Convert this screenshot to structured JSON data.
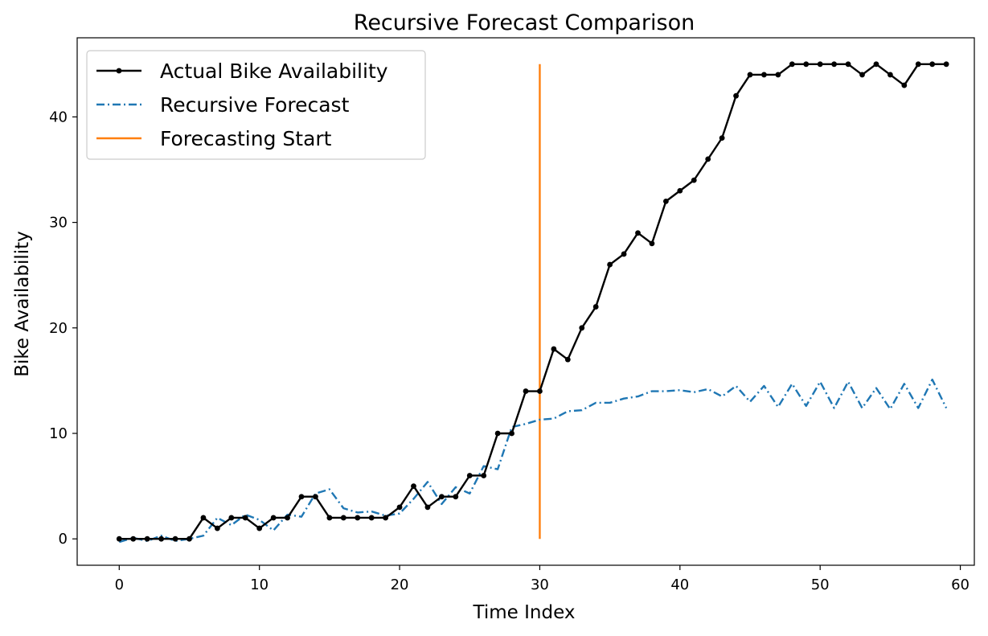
{
  "chart_data": {
    "type": "line",
    "title": "Recursive Forecast Comparison",
    "xlabel": "Time Index",
    "ylabel": "Bike Availability",
    "xlim": [
      -3,
      61
    ],
    "ylim": [
      -2.5,
      47.5
    ],
    "xticks": [
      0,
      10,
      20,
      30,
      40,
      50,
      60
    ],
    "yticks": [
      0,
      10,
      20,
      30,
      40
    ],
    "grid": false,
    "legend_position": "top-left",
    "series": [
      {
        "name": "Actual Bike Availability",
        "color": "#000000",
        "style": "solid-with-markers",
        "x": [
          0,
          1,
          2,
          3,
          4,
          5,
          6,
          7,
          8,
          9,
          10,
          11,
          12,
          13,
          14,
          15,
          16,
          17,
          18,
          19,
          20,
          21,
          22,
          23,
          24,
          25,
          26,
          27,
          28,
          29,
          30,
          31,
          32,
          33,
          34,
          35,
          36,
          37,
          38,
          39,
          40,
          41,
          42,
          43,
          44,
          45,
          46,
          47,
          48,
          49,
          50,
          51,
          52,
          53,
          54,
          55,
          56,
          57,
          58,
          59
        ],
        "values": [
          0,
          0,
          0,
          0,
          0,
          0,
          2,
          1,
          2,
          2,
          1,
          2,
          2,
          4,
          4,
          2,
          2,
          2,
          2,
          2,
          3,
          5,
          3,
          4,
          4,
          6,
          6,
          10,
          10,
          14,
          14,
          18,
          17,
          20,
          22,
          26,
          27,
          29,
          28,
          32,
          33,
          34,
          36,
          38,
          42,
          44,
          44,
          44,
          45,
          45,
          45,
          45,
          45,
          44,
          45,
          44,
          43,
          45,
          45,
          45
        ]
      },
      {
        "name": "Recursive Forecast",
        "color": "#1f77b4",
        "style": "dash-dot",
        "x": [
          0,
          1,
          2,
          3,
          4,
          5,
          6,
          7,
          8,
          9,
          10,
          11,
          12,
          13,
          14,
          15,
          16,
          17,
          18,
          19,
          20,
          21,
          22,
          23,
          24,
          25,
          26,
          27,
          28,
          29,
          30,
          31,
          32,
          33,
          34,
          35,
          36,
          37,
          38,
          39,
          40,
          41,
          42,
          43,
          44,
          45,
          46,
          47,
          48,
          49,
          50,
          51,
          52,
          53,
          54,
          55,
          56,
          57,
          58,
          59
        ],
        "values": [
          -0.3,
          0.1,
          -0.2,
          0.3,
          -0.2,
          0.0,
          0.3,
          2.0,
          1.3,
          2.3,
          1.8,
          0.8,
          2.3,
          2.1,
          4.3,
          4.7,
          2.9,
          2.5,
          2.6,
          2.2,
          2.4,
          3.8,
          5.4,
          3.3,
          4.9,
          4.3,
          6.9,
          6.6,
          10.6,
          10.9,
          11.3,
          11.4,
          12.1,
          12.2,
          12.9,
          12.9,
          13.3,
          13.5,
          14.0,
          14.0,
          14.1,
          13.9,
          14.2,
          13.5,
          14.5,
          13.0,
          14.5,
          12.5,
          14.7,
          12.6,
          14.9,
          12.4,
          14.9,
          12.4,
          14.3,
          12.3,
          14.7,
          12.4,
          15.1,
          12.4
        ]
      },
      {
        "name": "Forecasting Start",
        "color": "#ff7f0e",
        "style": "solid",
        "x": [
          30,
          30
        ],
        "values": [
          0,
          45
        ]
      }
    ]
  }
}
